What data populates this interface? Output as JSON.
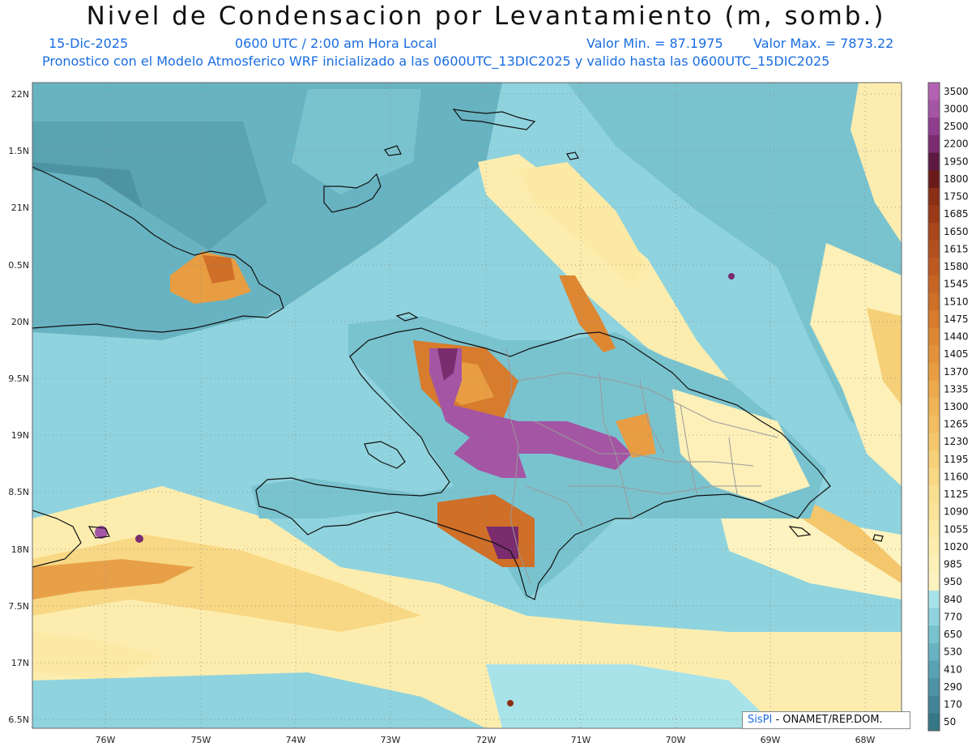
{
  "header": {
    "title": "Nivel de Condensacion por Levantamiento (m, somb.)",
    "date": "15-Dic-2025",
    "time": "0600 UTC / 2:00 am Hora Local",
    "min_label": "Valor Min. = 87.1975",
    "max_label": "Valor Max. = 7873.22",
    "model_line": "Pronostico con el Modelo Atmosferico WRF inicializado a las 0600UTC_13DIC2025 y valido hasta las  0600UTC_15DIC2025"
  },
  "axes": {
    "lat_labels": [
      "22N",
      "1.5N",
      "21N",
      "0.5N",
      "20N",
      "9.5N",
      "19N",
      "8.5N",
      "18N",
      "7.5N",
      "17N",
      "6.5N"
    ],
    "lon_labels": [
      "76W",
      "75W",
      "74W",
      "73W",
      "72W",
      "71W",
      "70W",
      "69W",
      "68W"
    ]
  },
  "legend": {
    "labels": [
      "3500",
      "3000",
      "2500",
      "2200",
      "1950",
      "1800",
      "1750",
      "1685",
      "1650",
      "1615",
      "1580",
      "1545",
      "1510",
      "1475",
      "1440",
      "1405",
      "1370",
      "1335",
      "1300",
      "1265",
      "1230",
      "1195",
      "1160",
      "1125",
      "1090",
      "1055",
      "1020",
      "985",
      "950",
      "840",
      "770",
      "650",
      "530",
      "410",
      "290",
      "170",
      "50"
    ],
    "colors": [
      "#b362b3",
      "#a455a4",
      "#8f3c8f",
      "#7a2c6e",
      "#5c1a43",
      "#6a1a1a",
      "#8a2e16",
      "#9a3a18",
      "#a8451b",
      "#b34f1e",
      "#bd5921",
      "#c66424",
      "#cf6f28",
      "#d77b2d",
      "#de8733",
      "#e3923a",
      "#e89d42",
      "#ecaa4c",
      "#efb456",
      "#f2be61",
      "#f4c76c",
      "#f6d078",
      "#f8d884",
      "#f9df8f",
      "#fae49a",
      "#fbe9a5",
      "#fcedaf",
      "#fdf0b8",
      "#fdf3c0",
      "#a9e3ea",
      "#8fd3de",
      "#79c3cf",
      "#68b3c1",
      "#5aa3b3",
      "#4d93a4",
      "#418596",
      "#357788"
    ]
  },
  "credit": {
    "brand": "SisPI",
    "org": "- ONAMET/REP.DOM."
  }
}
